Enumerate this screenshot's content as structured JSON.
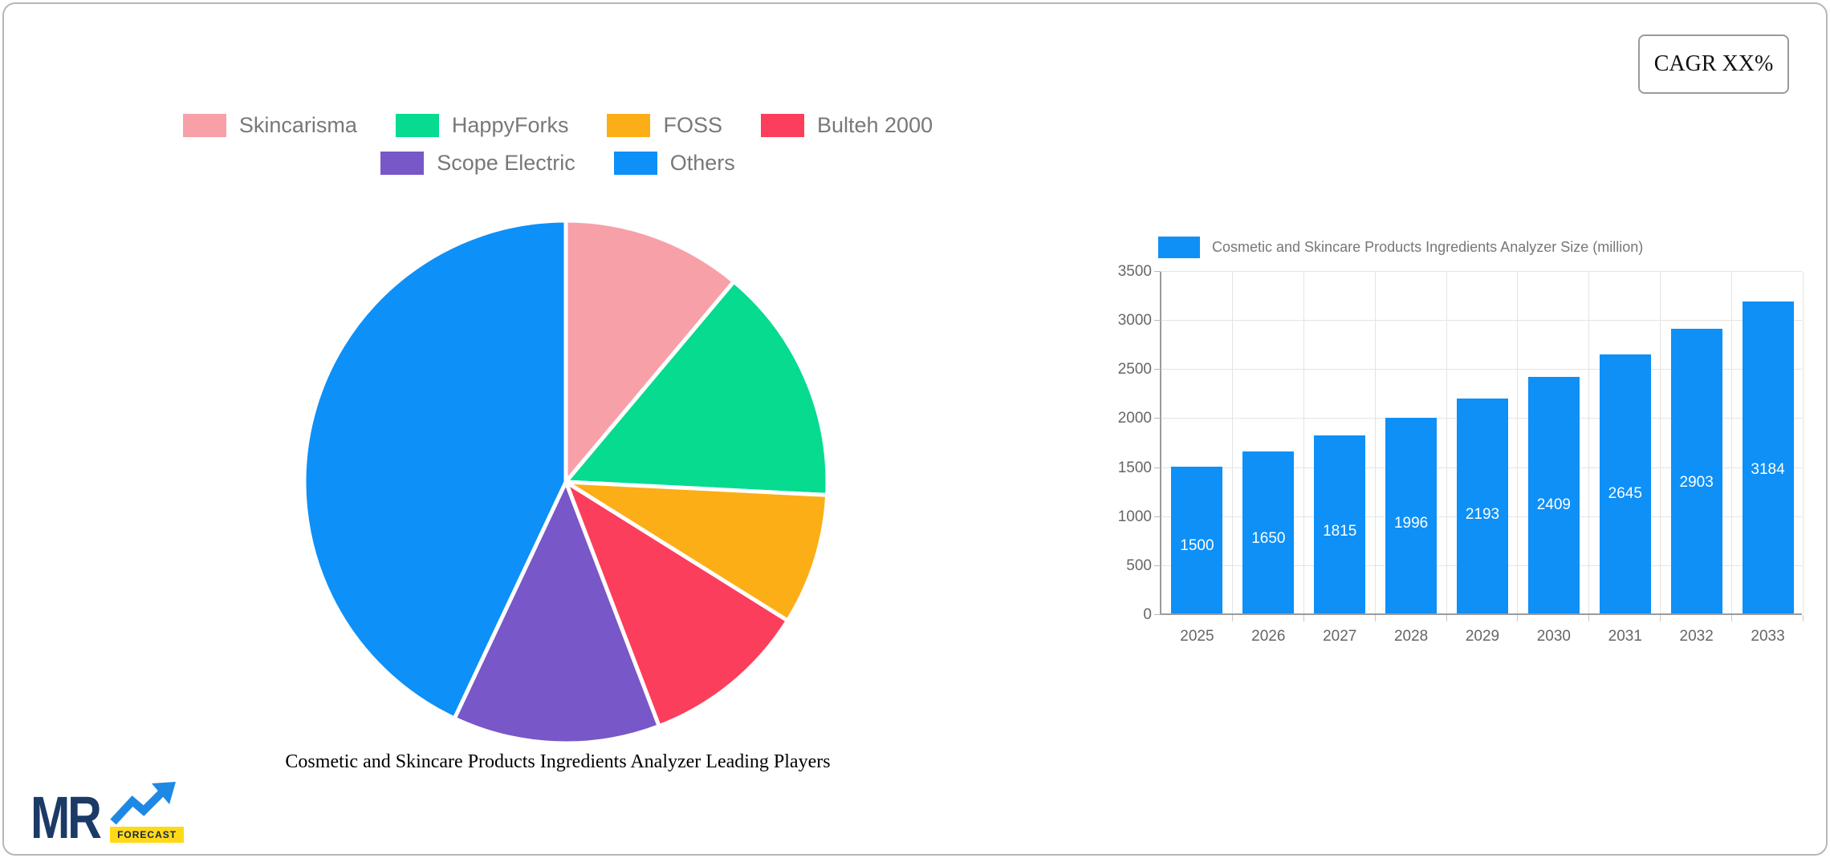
{
  "cagr": {
    "label": "CAGR XX%"
  },
  "logo": {
    "brand": "MR",
    "sub": "FORECAST",
    "brand_color": "#1b3a66",
    "arrow_color": "#1e88e5",
    "badge_color": "#ffd918"
  },
  "chart_data": [
    {
      "type": "pie",
      "title": "Cosmetic and Skincare Products Ingredients Analyzer Leading Players",
      "labels": [
        "Skincarisma",
        "HappyForks",
        "FOSS",
        "Bulteh 2000",
        "Scope Electric",
        "Others"
      ],
      "values": [
        11.1,
        14.7,
        8.1,
        10.3,
        12.8,
        43.0
      ],
      "colors": [
        "#F8A0A7",
        "#06DB90",
        "#FCAE16",
        "#FB3E5C",
        "#7857C8",
        "#0D90F8"
      ],
      "legend_position": "top",
      "start_angle_deg": 0,
      "slice_border_color": "#ffffff"
    },
    {
      "type": "bar",
      "series_label": "Cosmetic and Skincare Products Ingredients Analyzer Size (million)",
      "categories": [
        "2025",
        "2026",
        "2027",
        "2028",
        "2029",
        "2030",
        "2031",
        "2032",
        "2033"
      ],
      "values": [
        1500,
        1650,
        1815,
        1996,
        2193,
        2409,
        2645,
        2903,
        3184
      ],
      "ylim": [
        0,
        3500
      ],
      "yticks": [
        0,
        500,
        1000,
        1500,
        2000,
        2500,
        3000,
        3500
      ],
      "bar_color": "#0E90F7",
      "value_label_color": "#ffffff",
      "grid": true,
      "legend_position": "top"
    }
  ]
}
